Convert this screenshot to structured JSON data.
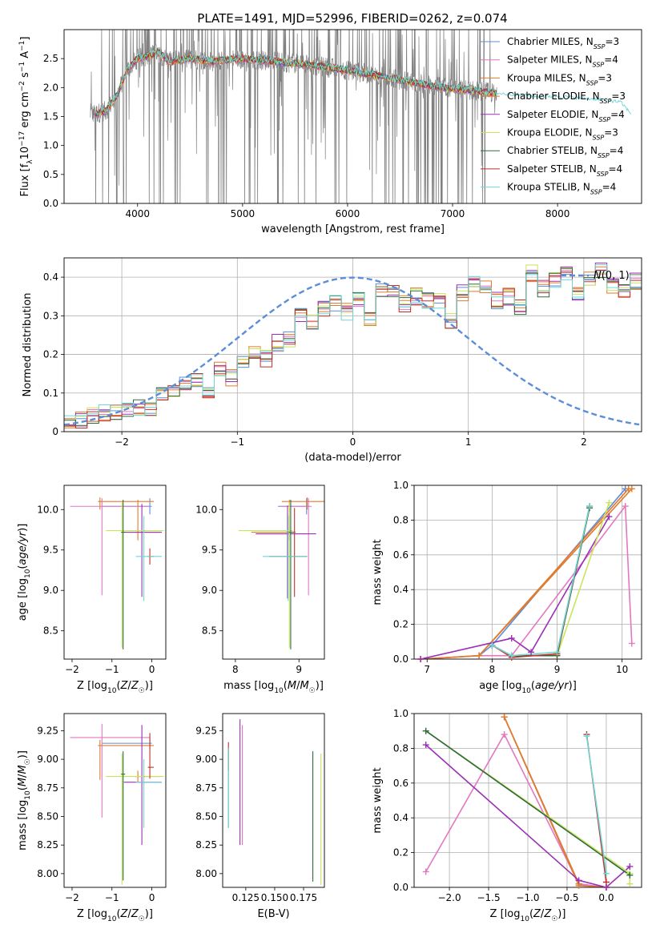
{
  "figure_title": "PLATE=1491, MJD=52996, FIBERID=0262, z=0.074",
  "colors": {
    "Chabrier MILES": "#5b8dd9",
    "Salpeter MILES": "#e377c2",
    "Kroupa MILES": "#e07b2f",
    "Chabrier ELODIE": "#e07b2f",
    "Salpeter ELODIE": "#9b30b6",
    "Kroupa ELODIE": "#c8e55a",
    "Chabrier STELIB": "#2f6b3a",
    "Salpeter STELIB": "#c0302a",
    "Kroupa STELIB": "#6fd6d6",
    "data": "#808080",
    "normal": "#5b8dd9"
  },
  "chart_data": [
    {
      "id": "spectrum",
      "type": "line",
      "title": "PLATE=1491, MJD=52996, FIBERID=0262, z=0.074",
      "xlabel": "wavelength [Angstrom, rest frame]",
      "ylabel": "Flux [f_λ10^-17 erg cm^-2 s^-1 A^-1]",
      "xlim": [
        3300,
        8800
      ],
      "ylim": [
        0,
        3.0
      ],
      "xticks": [
        4000,
        5000,
        6000,
        7000,
        8000
      ],
      "yticks": [
        0.0,
        0.5,
        1.0,
        1.5,
        2.0,
        2.5
      ],
      "legend_position": "top-right",
      "legend": [
        "Chabrier MILES, N_SSP=3",
        "Salpeter MILES, N_SSP=4",
        "Kroupa MILES, N_SSP=3",
        "Chabrier ELODIE, N_SSP=3",
        "Salpeter ELODIE, N_SSP=4",
        "Kroupa ELODIE, N_SSP=3",
        "Chabrier STELIB, N_SSP=4",
        "Salpeter STELIB, N_SSP=4",
        "Kroupa STELIB, N_SSP=4"
      ],
      "data_range": [
        3550,
        7420
      ],
      "model_curve": {
        "x": [
          3600,
          3700,
          3800,
          3900,
          4000,
          4100,
          4200,
          4300,
          4500,
          4700,
          5000,
          5300,
          5600,
          6000,
          6300,
          6600,
          6900,
          7200,
          7400
        ],
        "y": [
          1.55,
          1.6,
          1.85,
          2.3,
          2.5,
          2.55,
          2.6,
          2.45,
          2.5,
          2.45,
          2.5,
          2.45,
          2.4,
          2.3,
          2.2,
          2.1,
          2.0,
          1.95,
          1.9
        ]
      },
      "stelib_extension": {
        "x": [
          7420,
          7600,
          7800,
          8000,
          8200,
          8400,
          8600,
          8700
        ],
        "y": [
          1.9,
          1.88,
          1.85,
          1.85,
          1.82,
          1.8,
          1.75,
          1.55
        ]
      }
    },
    {
      "id": "residual-histogram",
      "type": "histogram",
      "xlabel": "(data-model)/error",
      "ylabel": "Normed distribution",
      "xlim": [
        -2.5,
        2.5
      ],
      "ylim": [
        0,
        0.45
      ],
      "xticks": [
        -2,
        -1,
        0,
        1,
        2
      ],
      "yticks": [
        0.0,
        0.1,
        0.2,
        0.3,
        0.4
      ],
      "legend": [
        "N(0,1)"
      ],
      "legend_position": "top-right",
      "bin_width": 0.1,
      "bin_start": -2.5,
      "reference_hist": [
        0.03,
        0.03,
        0.04,
        0.05,
        0.05,
        0.06,
        0.06,
        0.06,
        0.1,
        0.1,
        0.12,
        0.13,
        0.1,
        0.16,
        0.14,
        0.18,
        0.2,
        0.19,
        0.23,
        0.24,
        0.3,
        0.28,
        0.32,
        0.33,
        0.31,
        0.34,
        0.29,
        0.37,
        0.36,
        0.33,
        0.35,
        0.34,
        0.34,
        0.29,
        0.36,
        0.38,
        0.38,
        0.34,
        0.35,
        0.32,
        0.41,
        0.37,
        0.39,
        0.41,
        0.36,
        0.4,
        0.42,
        0.38,
        0.37,
        0.39,
        0.33,
        0.36,
        0.31,
        0.34,
        0.31,
        0.29,
        0.25,
        0.26,
        0.23,
        0.21,
        0.19,
        0.19,
        0.15,
        0.17,
        0.14,
        0.11,
        0.12,
        0.09,
        0.09,
        0.08,
        0.07,
        0.05,
        0.05,
        0.05,
        0.04,
        0.03,
        0.04,
        0.03,
        0.03,
        0.03
      ],
      "normal": {
        "mean": 0,
        "sigma": 1
      }
    },
    {
      "id": "age-vs-z",
      "type": "errorbar",
      "xlabel": "Z [log10(Z/Z☉)]",
      "ylabel": "age  [log10(age/yr)]",
      "xlim": [
        -2.2,
        0.35
      ],
      "ylim": [
        8.15,
        10.3
      ],
      "xticks": [
        -2,
        -1,
        0
      ],
      "yticks": [
        8.5,
        9.0,
        9.5,
        10.0
      ],
      "points": [
        {
          "model": "Chabrier MILES",
          "x": -0.05,
          "y": 10.04,
          "xerr": [
            1.2,
            0.05
          ],
          "yerr": [
            0.1,
            0.1
          ]
        },
        {
          "model": "Salpeter MILES",
          "x": -1.25,
          "y": 10.04,
          "xerr": [
            0.8,
            1.2
          ],
          "yerr": [
            1.1,
            0.1
          ]
        },
        {
          "model": "Kroupa MILES",
          "x": -1.3,
          "y": 10.1,
          "xerr": [
            0.05,
            1.35
          ],
          "yerr": [
            0.1,
            0.05
          ]
        },
        {
          "model": "Chabrier ELODIE",
          "x": -0.35,
          "y": 9.72,
          "xerr": [
            0.1,
            0.55
          ],
          "yerr": [
            0.1,
            0.4
          ]
        },
        {
          "model": "Salpeter ELODIE",
          "x": -0.25,
          "y": 9.72,
          "xerr": [
            0.45,
            0.5
          ],
          "yerr": [
            0.8,
            0.35
          ]
        },
        {
          "model": "Kroupa ELODIE",
          "x": -0.75,
          "y": 9.74,
          "xerr": [
            0.4,
            1.05
          ],
          "yerr": [
            1.45,
            0.35
          ]
        },
        {
          "model": "Chabrier STELIB",
          "x": -0.72,
          "y": 9.72,
          "xerr": [
            0.05,
            0.05
          ],
          "yerr": [
            1.45,
            0.4
          ]
        },
        {
          "model": "Salpeter STELIB",
          "x": -0.05,
          "y": 9.42,
          "xerr": [
            0.05,
            0.1
          ],
          "yerr": [
            0.1,
            0.1
          ]
        },
        {
          "model": "Kroupa STELIB",
          "x": -0.2,
          "y": 9.42,
          "xerr": [
            0.2,
            0.45
          ],
          "yerr": [
            0.55,
            0.5
          ]
        }
      ]
    },
    {
      "id": "age-vs-mass",
      "type": "errorbar",
      "xlabel": "mass [log10(M/M☉)]",
      "ylabel": "",
      "xlim": [
        7.8,
        9.4
      ],
      "ylim": [
        8.15,
        10.3
      ],
      "xticks": [
        8,
        9
      ],
      "yticks": [
        8.5,
        9.0,
        9.5,
        10.0
      ],
      "points": [
        {
          "model": "Chabrier MILES",
          "x": 9.12,
          "y": 10.04,
          "xerr": [
            0.45,
            0.05
          ],
          "yerr": [
            0.1,
            0.1
          ]
        },
        {
          "model": "Salpeter MILES",
          "x": 9.15,
          "y": 10.04,
          "xerr": [
            0.45,
            0.05
          ],
          "yerr": [
            1.1,
            0.1
          ]
        },
        {
          "model": "Kroupa MILES",
          "x": 9.13,
          "y": 10.1,
          "xerr": [
            0.4,
            0.3
          ],
          "yerr": [
            0.1,
            0.05
          ]
        },
        {
          "model": "Chabrier ELODIE",
          "x": 8.85,
          "y": 9.72,
          "xerr": [
            0.6,
            0.1
          ],
          "yerr": [
            0.1,
            0.4
          ]
        },
        {
          "model": "Salpeter ELODIE",
          "x": 8.82,
          "y": 9.7,
          "xerr": [
            0.5,
            0.45
          ],
          "yerr": [
            0.8,
            0.35
          ]
        },
        {
          "model": "Kroupa ELODIE",
          "x": 8.85,
          "y": 9.74,
          "xerr": [
            0.8,
            0.05
          ],
          "yerr": [
            1.45,
            0.35
          ]
        },
        {
          "model": "Chabrier STELIB",
          "x": 8.87,
          "y": 9.72,
          "xerr": [
            0.05,
            0.05
          ],
          "yerr": [
            1.45,
            0.4
          ]
        },
        {
          "model": "Salpeter STELIB",
          "x": 8.93,
          "y": 9.42,
          "xerr": [
            0.4,
            0.2
          ],
          "yerr": [
            0.5,
            0.6
          ]
        },
        {
          "model": "Kroupa STELIB",
          "x": 8.83,
          "y": 9.42,
          "xerr": [
            0.4,
            0.3
          ],
          "yerr": [
            0.55,
            0.5
          ]
        }
      ]
    },
    {
      "id": "mass-weight-vs-age",
      "type": "line",
      "xlabel": "age  [log10(age/yr)]",
      "ylabel": "mass weight",
      "xlim": [
        6.8,
        10.3
      ],
      "ylim": [
        0,
        1.0
      ],
      "xticks": [
        7,
        8,
        9,
        10
      ],
      "yticks": [
        0.0,
        0.2,
        0.4,
        0.6,
        0.8,
        1.0
      ],
      "grid": true,
      "series": [
        {
          "model": "Chabrier MILES",
          "x": [
            7.8,
            8.0,
            10.05
          ],
          "y": [
            0.02,
            0.08,
            0.98
          ]
        },
        {
          "model": "Salpeter MILES",
          "x": [
            6.9,
            7.8,
            8.3,
            10.05,
            10.15
          ],
          "y": [
            0.0,
            0.02,
            0.02,
            0.88,
            0.09
          ]
        },
        {
          "model": "Kroupa MILES",
          "x": [
            6.9,
            7.8,
            10.15
          ],
          "y": [
            0.0,
            0.02,
            0.98
          ]
        },
        {
          "model": "Chabrier ELODIE",
          "x": [
            6.9,
            7.8,
            10.1
          ],
          "y": [
            0.0,
            0.02,
            0.98
          ]
        },
        {
          "model": "Salpeter ELODIE",
          "x": [
            6.9,
            8.3,
            8.6,
            9.8
          ],
          "y": [
            0.0,
            0.12,
            0.04,
            0.82
          ]
        },
        {
          "model": "Kroupa ELODIE",
          "x": [
            8.3,
            9.0,
            9.8
          ],
          "y": [
            0.02,
            0.02,
            0.9
          ]
        },
        {
          "model": "Chabrier STELIB",
          "x": [
            8.0,
            8.3,
            9.0,
            9.5
          ],
          "y": [
            0.08,
            0.02,
            0.02,
            0.87
          ]
        },
        {
          "model": "Salpeter STELIB",
          "x": [
            8.0,
            8.3,
            9.0,
            9.5
          ],
          "y": [
            0.08,
            0.01,
            0.03,
            0.88
          ]
        },
        {
          "model": "Kroupa STELIB",
          "x": [
            8.0,
            8.3,
            9.0,
            9.5
          ],
          "y": [
            0.08,
            0.02,
            0.04,
            0.88
          ]
        }
      ]
    },
    {
      "id": "mass-vs-z",
      "type": "errorbar",
      "xlabel": "Z [log10(Z/Z☉)]",
      "ylabel": "mass [log10(M/M☉)]",
      "xlim": [
        -2.2,
        0.35
      ],
      "ylim": [
        7.88,
        9.4
      ],
      "xticks": [
        -2,
        -1,
        0
      ],
      "yticks": [
        8.0,
        8.25,
        8.5,
        8.75,
        9.0,
        9.25
      ],
      "points": [
        {
          "model": "Chabrier MILES",
          "x": -0.05,
          "y": 9.14,
          "xerr": [
            1.2,
            0.05
          ],
          "yerr": [
            0.05,
            0.05
          ]
        },
        {
          "model": "Salpeter MILES",
          "x": -1.25,
          "y": 9.19,
          "xerr": [
            0.8,
            1.2
          ],
          "yerr": [
            0.7,
            0.12
          ]
        },
        {
          "model": "Kroupa MILES",
          "x": -1.3,
          "y": 9.12,
          "xerr": [
            0.05,
            1.35
          ],
          "yerr": [
            0.3,
            0.05
          ]
        },
        {
          "model": "Chabrier ELODIE",
          "x": -0.35,
          "y": 8.85,
          "xerr": [
            0.1,
            0.55
          ],
          "yerr": [
            0.05,
            0.05
          ]
        },
        {
          "model": "Salpeter ELODIE",
          "x": -0.25,
          "y": 8.8,
          "xerr": [
            0.45,
            0.5
          ],
          "yerr": [
            0.55,
            0.5
          ]
        },
        {
          "model": "Kroupa ELODIE",
          "x": -0.75,
          "y": 8.85,
          "xerr": [
            0.4,
            1.05
          ],
          "yerr": [
            0.95,
            0.2
          ]
        },
        {
          "model": "Chabrier STELIB",
          "x": -0.72,
          "y": 8.87,
          "xerr": [
            0.05,
            0.05
          ],
          "yerr": [
            0.93,
            0.2
          ]
        },
        {
          "model": "Salpeter STELIB",
          "x": -0.05,
          "y": 8.93,
          "xerr": [
            0.05,
            0.1
          ],
          "yerr": [
            0.1,
            0.3
          ]
        },
        {
          "model": "Kroupa STELIB",
          "x": -0.2,
          "y": 8.8,
          "xerr": [
            0.2,
            0.45
          ],
          "yerr": [
            0.4,
            0.2
          ]
        }
      ]
    },
    {
      "id": "mass-vs-ebv",
      "type": "errorbar",
      "xlabel": "E(B-V)",
      "ylabel": "",
      "xlim": [
        0.105,
        0.193
      ],
      "ylim": [
        7.88,
        9.4
      ],
      "xticks": [
        0.125,
        0.15,
        0.175
      ],
      "xtick_labels": [
        "0.125",
        "0.150",
        "0.175"
      ],
      "yticks": [
        8.0,
        8.25,
        8.5,
        8.75,
        9.0,
        9.25
      ],
      "points": [
        {
          "model": "Chabrier MILES",
          "x": 0.11,
          "y": 8.8,
          "yerr": [
            0.4,
            0.3
          ]
        },
        {
          "model": "Salpeter MILES",
          "x": 0.122,
          "y": 9.05,
          "yerr": [
            0.8,
            0.25
          ]
        },
        {
          "model": "Salpeter ELODIE",
          "x": 0.12,
          "y": 8.8,
          "yerr": [
            0.55,
            0.55
          ]
        },
        {
          "model": "Salpeter STELIB",
          "x": 0.11,
          "y": 9.0,
          "yerr": [
            0.1,
            0.15
          ]
        },
        {
          "model": "Chabrier STELIB",
          "x": 0.183,
          "y": 8.5,
          "yerr": [
            0.57,
            0.57
          ]
        },
        {
          "model": "Kroupa ELODIE",
          "x": 0.19,
          "y": 8.5,
          "yerr": [
            0.6,
            0.55
          ]
        },
        {
          "model": "Kroupa STELIB",
          "x": 0.11,
          "y": 8.7,
          "yerr": [
            0.3,
            0.4
          ]
        }
      ]
    },
    {
      "id": "mass-weight-vs-z",
      "type": "line",
      "xlabel": "Z [log10(Z/Z☉)]",
      "ylabel": "mass weight",
      "xlim": [
        -2.45,
        0.45
      ],
      "ylim": [
        0,
        1.0
      ],
      "xticks": [
        -2.0,
        -1.5,
        -1.0,
        -0.5,
        0.0
      ],
      "xtick_labels": [
        "−2.0",
        "−1.5",
        "−1.0",
        "−0.5",
        "0.0"
      ],
      "yticks": [
        0.0,
        0.2,
        0.4,
        0.6,
        0.8,
        1.0
      ],
      "grid": true,
      "series": [
        {
          "model": "Chabrier MILES",
          "x": [
            -1.3,
            -0.35,
            0.0
          ],
          "y": [
            0.98,
            0.02,
            0.0
          ]
        },
        {
          "model": "Salpeter MILES",
          "x": [
            -2.3,
            -1.3,
            -0.35,
            0.0
          ],
          "y": [
            0.09,
            0.88,
            0.02,
            0.0
          ]
        },
        {
          "model": "Kroupa MILES",
          "x": [
            -1.3,
            -0.35,
            0.0
          ],
          "y": [
            0.98,
            0.01,
            0.0
          ]
        },
        {
          "model": "Chabrier ELODIE",
          "x": [
            -1.3,
            -0.35
          ],
          "y": [
            0.98,
            0.02
          ]
        },
        {
          "model": "Salpeter ELODIE",
          "x": [
            -2.3,
            -0.35,
            0.0,
            0.3
          ],
          "y": [
            0.82,
            0.04,
            0.0,
            0.12
          ]
        },
        {
          "model": "Kroupa ELODIE",
          "x": [
            -2.3,
            0.3,
            0.3
          ],
          "y": [
            0.9,
            0.08,
            0.02
          ]
        },
        {
          "model": "Chabrier STELIB",
          "x": [
            -2.3,
            0.3
          ],
          "y": [
            0.9,
            0.07
          ]
        },
        {
          "model": "Salpeter STELIB",
          "x": [
            -0.25,
            0.0
          ],
          "y": [
            0.88,
            0.03
          ]
        },
        {
          "model": "Kroupa STELIB",
          "x": [
            -0.25,
            0.0
          ],
          "y": [
            0.87,
            0.08
          ]
        }
      ]
    }
  ]
}
